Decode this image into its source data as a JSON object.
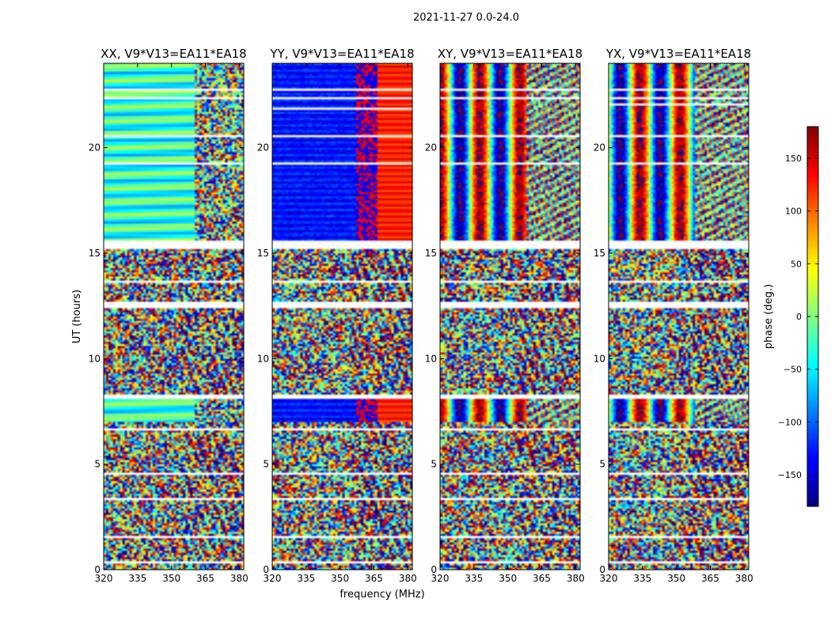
{
  "chart_data": {
    "type": "heatmap",
    "suptitle": "2021-11-27 0.0-24.0",
    "xlabel": "frequency (MHz)",
    "ylabel": "UT (hours)",
    "xlim": [
      320,
      382
    ],
    "ylim": [
      0,
      24
    ],
    "xticks": [
      320,
      335,
      350,
      365,
      380
    ],
    "yticks": [
      0,
      5,
      10,
      15,
      20
    ],
    "colorbar": {
      "label": "phase (deg.)",
      "range": [
        -180,
        180
      ],
      "ticks": [
        150,
        100,
        50,
        0,
        -50,
        -100,
        -150
      ],
      "tick_labels": [
        "150",
        "100",
        "50",
        "0",
        "−50",
        "−100",
        "−150"
      ],
      "colormap": "jet"
    },
    "panels": [
      {
        "title": "XX, V9*V13=EA11*EA18",
        "pattern": "xx"
      },
      {
        "title": "YY, V9*V13=EA11*EA18",
        "pattern": "yy"
      },
      {
        "title": "XY, V9*V13=EA11*EA18",
        "pattern": "xy"
      },
      {
        "title": "YX, V9*V13=EA11*EA18",
        "pattern": "yx"
      }
    ],
    "flagged_hours": [
      [
        0.32,
        0.38
      ],
      [
        1.45,
        1.6
      ],
      [
        2.55,
        2.6
      ],
      [
        3.3,
        3.36
      ],
      [
        4.5,
        4.56
      ],
      [
        6.6,
        6.68
      ],
      [
        8.15,
        8.25
      ],
      [
        8.55,
        8.6
      ],
      [
        12.4,
        12.65
      ],
      [
        13.6,
        13.65
      ],
      [
        15.2,
        15.55
      ],
      [
        19.2,
        19.25
      ],
      [
        20.5,
        20.55
      ],
      [
        22.3,
        22.35
      ],
      [
        22.7,
        22.75
      ]
    ]
  }
}
